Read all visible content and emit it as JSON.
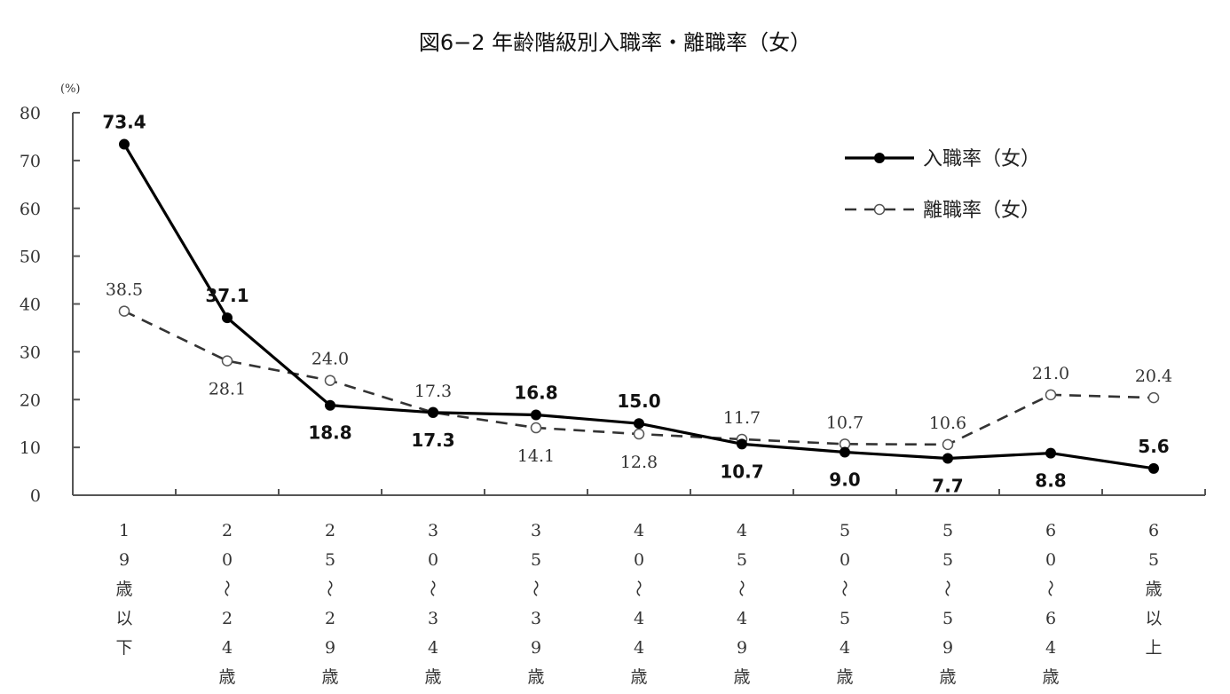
{
  "title": "図6−2 年齢階級別入職率・離職率（女）",
  "chart_data": {
    "type": "line",
    "title": "図6−2 年齢階級別入職率・離職率（女）",
    "xlabel": "",
    "ylabel": "(%)",
    "ylim": [
      0,
      80
    ],
    "yticks": [
      0,
      10,
      20,
      30,
      40,
      50,
      60,
      70,
      80
    ],
    "grid": false,
    "legend_position": "upper right",
    "categories": [
      "19歳以下",
      "20〜24歳",
      "25〜29歳",
      "30〜34歳",
      "35〜39歳",
      "40〜44歳",
      "45〜49歳",
      "50〜54歳",
      "55〜59歳",
      "60〜64歳",
      "65歳以上"
    ],
    "category_labels_vertical": [
      [
        "1",
        "9",
        "歳",
        "以",
        "下"
      ],
      [
        "2",
        "0",
        "〜",
        "2",
        "4",
        "歳"
      ],
      [
        "2",
        "5",
        "〜",
        "2",
        "9",
        "歳"
      ],
      [
        "3",
        "0",
        "〜",
        "3",
        "4",
        "歳"
      ],
      [
        "3",
        "5",
        "〜",
        "3",
        "9",
        "歳"
      ],
      [
        "4",
        "0",
        "〜",
        "4",
        "4",
        "歳"
      ],
      [
        "4",
        "5",
        "〜",
        "4",
        "9",
        "歳"
      ],
      [
        "5",
        "0",
        "〜",
        "5",
        "4",
        "歳"
      ],
      [
        "5",
        "5",
        "〜",
        "5",
        "9",
        "歳"
      ],
      [
        "6",
        "0",
        "〜",
        "6",
        "4",
        "歳"
      ],
      [
        "6",
        "5",
        "歳",
        "以",
        "上"
      ]
    ],
    "series": [
      {
        "name": "入職率（女）",
        "style": "solid",
        "marker": "filled-circle",
        "color": "#000000",
        "values": [
          73.4,
          37.1,
          18.8,
          17.3,
          16.8,
          15.0,
          10.7,
          9.0,
          7.7,
          8.8,
          5.6
        ],
        "labels": [
          "73.4",
          "37.1",
          "18.8",
          "17.3",
          "16.8",
          "15.0",
          "10.7",
          "9.0",
          "7.7",
          "8.8",
          "5.6"
        ],
        "label_pos": [
          "above",
          "above",
          "below",
          "below",
          "above",
          "above",
          "below",
          "below",
          "below",
          "below",
          "above"
        ]
      },
      {
        "name": "離職率（女）",
        "style": "dashed",
        "marker": "open-circle",
        "color": "#333333",
        "values": [
          38.5,
          28.1,
          24.0,
          17.3,
          14.1,
          12.8,
          11.7,
          10.7,
          10.6,
          21.0,
          20.4
        ],
        "labels": [
          "38.5",
          "28.1",
          "24.0",
          "17.3",
          "14.1",
          "12.8",
          "11.7",
          "10.7",
          "10.6",
          "21.0",
          "20.4"
        ],
        "label_pos": [
          "above",
          "below",
          "above",
          "above",
          "below",
          "below",
          "above",
          "above",
          "above",
          "above",
          "above"
        ]
      }
    ]
  }
}
